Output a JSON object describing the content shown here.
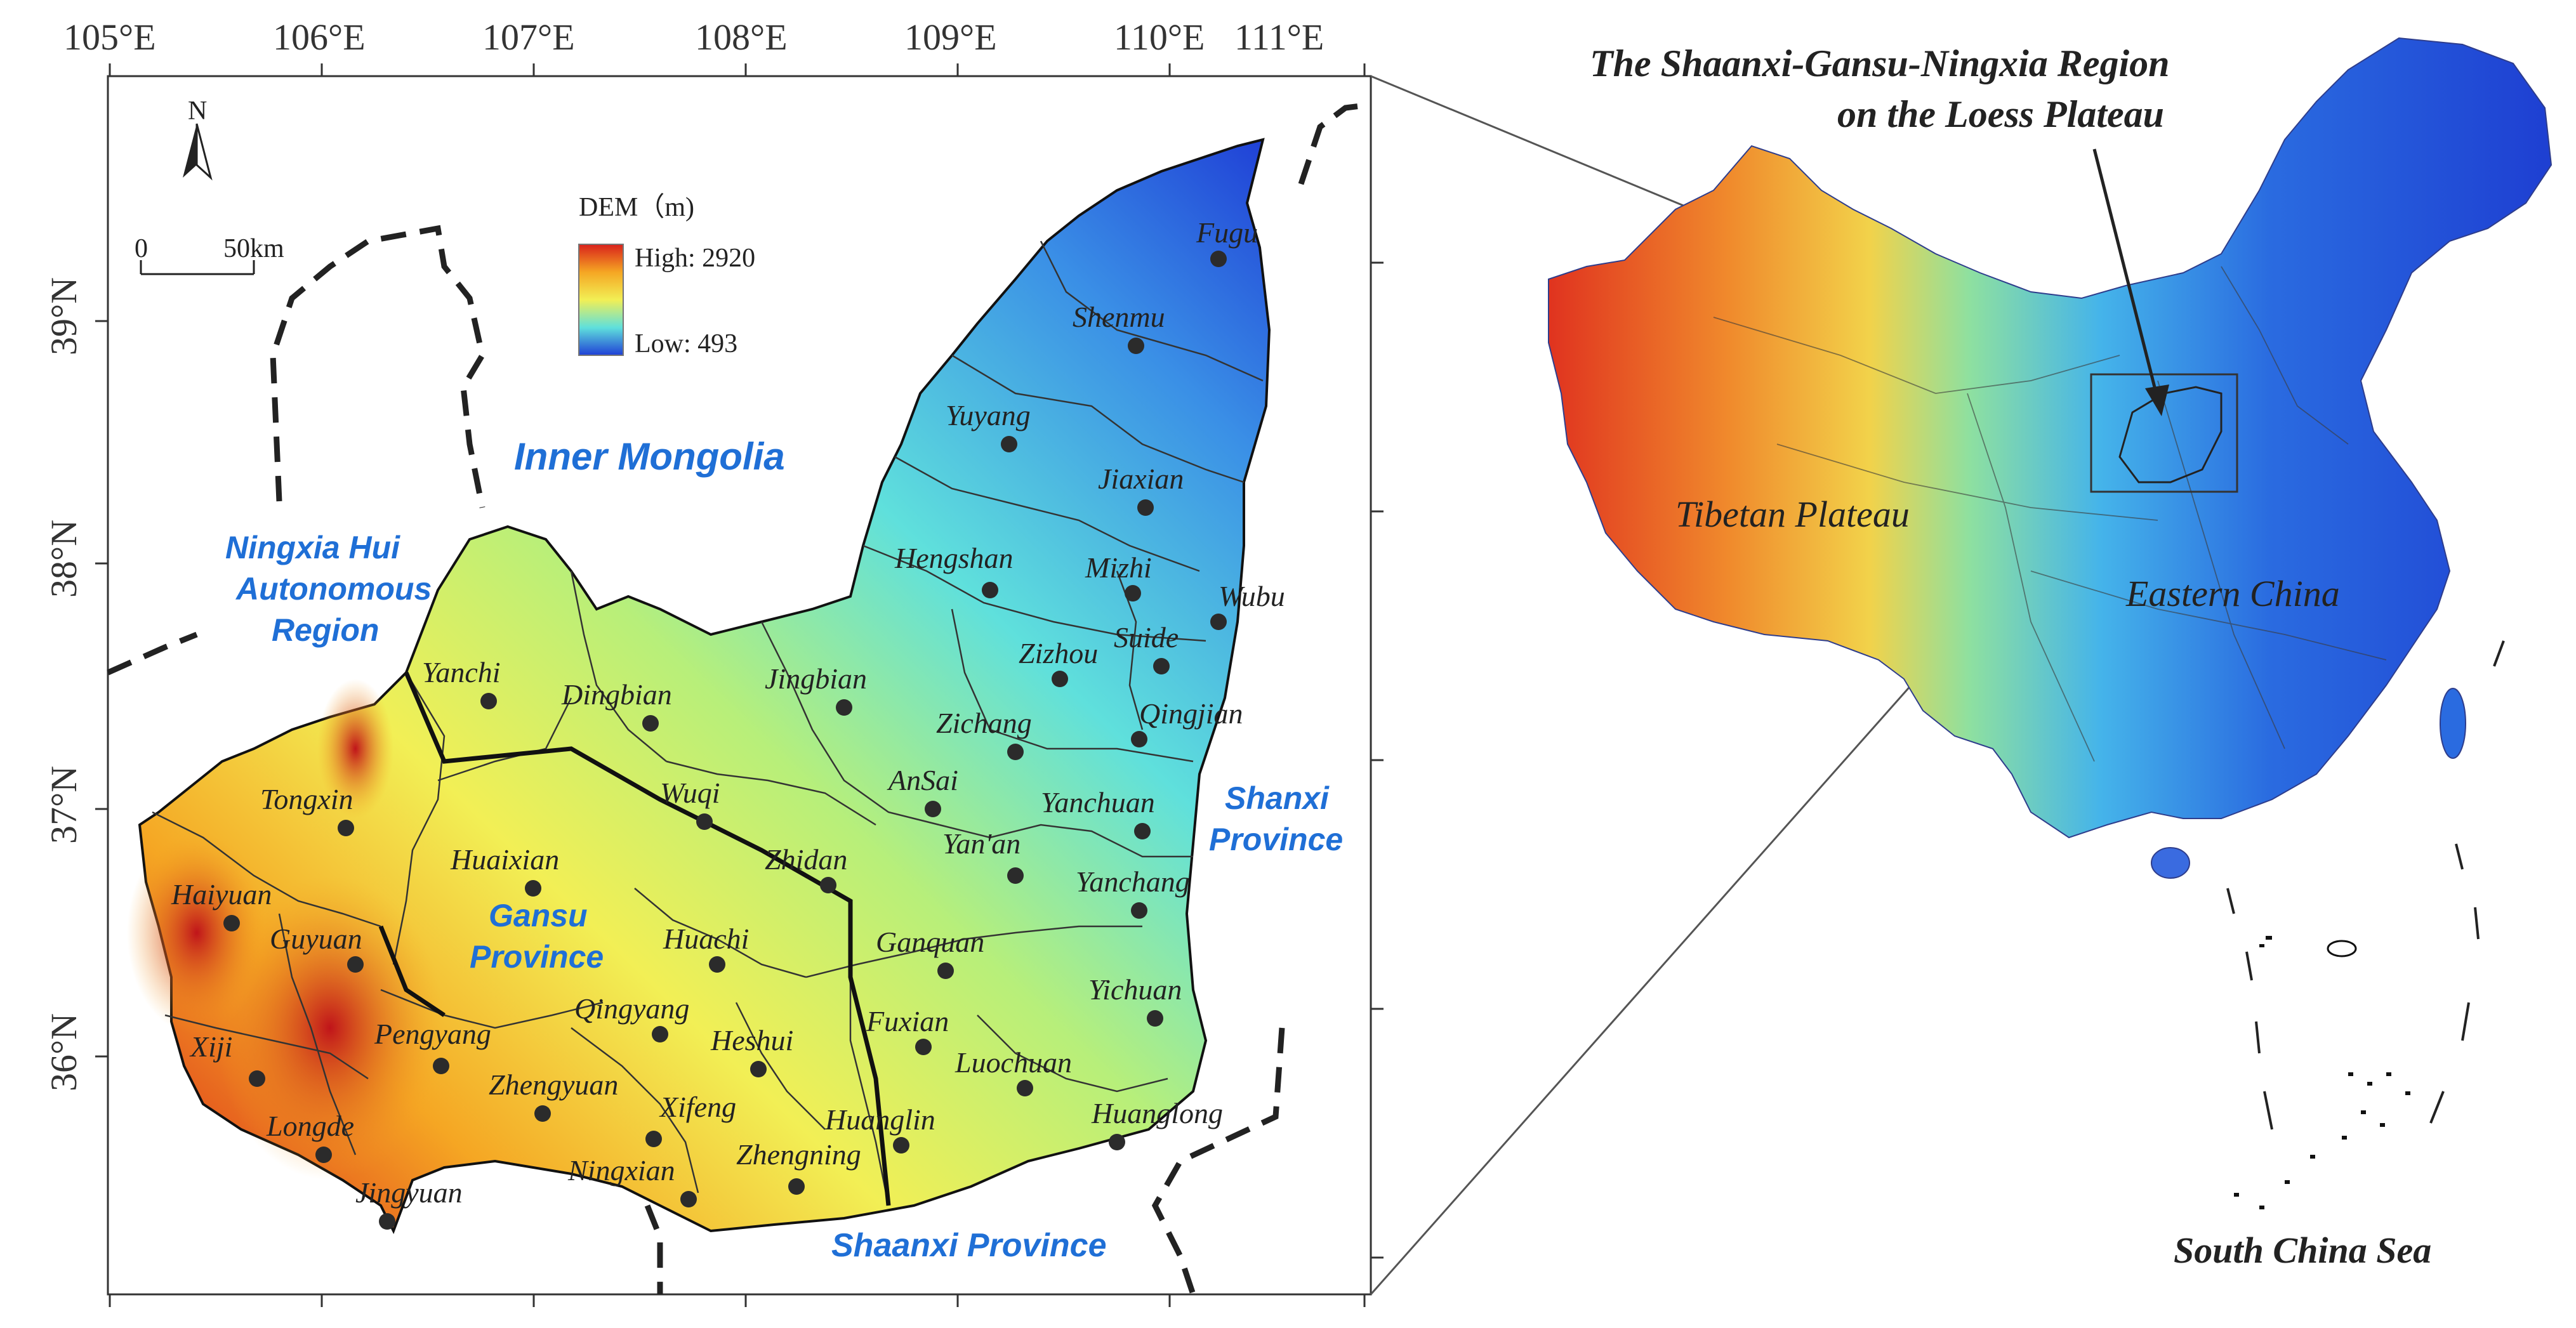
{
  "colors": {
    "dem_high": "#d9211b",
    "dem_mid_high": "#f5a623",
    "dem_mid": "#f2ef55",
    "dem_mid_low": "#5fe0dc",
    "dem_low": "#1f3fd6",
    "region_label": "#1f6fd6"
  },
  "axes": {
    "longitude_labels": [
      "105°E",
      "106°E",
      "107°E",
      "108°E",
      "109°E",
      "110°E",
      "111°E"
    ],
    "latitude_labels": [
      "39°N",
      "38°N",
      "37°N",
      "36°N"
    ]
  },
  "north_arrow": {
    "label": "N"
  },
  "scale_bar": {
    "start": "0",
    "end": "50km"
  },
  "legend": {
    "title": "DEM（m)",
    "high_label": "High: 2920",
    "low_label": "Low:   493"
  },
  "regions": {
    "inner_mongolia": "Inner Mongolia",
    "ningxia_line1": "Ningxia Hui",
    "ningxia_line2": "Autonomous",
    "ningxia_line3": "Region",
    "shanxi_line1": "Shanxi",
    "shanxi_line2": "Province",
    "gansu_line1": "Gansu",
    "gansu_line2": "Province",
    "shaanxi": "Shaanxi Province"
  },
  "places": [
    "Fugu",
    "Shenmu",
    "Yuyang",
    "Jiaxian",
    "Hengshan",
    "Mizhi",
    "Wubu",
    "Suide",
    "Zizhou",
    "Qingjian",
    "Zichang",
    "Jingbian",
    "Dingbian",
    "Yanchi",
    "Wuqi",
    "AnSai",
    "Yanchuan",
    "Yan'an",
    "Yanchang",
    "Zhidan",
    "Tongxin",
    "Huaixian",
    "Haiyuan",
    "Guyuan",
    "Huachi",
    "Ganquan",
    "Yichuan",
    "Qingyang",
    "Fuxian",
    "Xiji",
    "Pengyang",
    "Heshui",
    "Luochuan",
    "Zhengyuan",
    "Xifeng",
    "Huanglin",
    "Huanglong",
    "Longde",
    "Ningxian",
    "Zhengning",
    "Jingyuan"
  ],
  "inset": {
    "title_line1": "The Shaanxi-Gansu-Ningxia Region",
    "title_line2": "on the Loess  Plateau",
    "tibetan": "Tibetan  Plateau",
    "eastern": "Eastern  China",
    "south_sea": "South China Sea"
  }
}
